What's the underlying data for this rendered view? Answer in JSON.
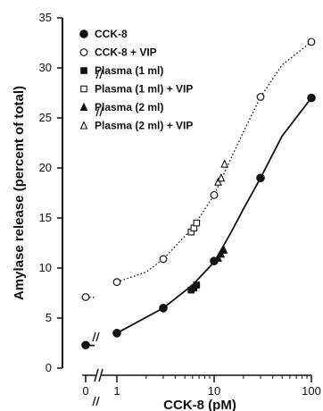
{
  "chart_data": {
    "type": "scatter",
    "title": "",
    "xlabel": "CCK-8 (pM)",
    "ylabel": "Amylase release (percent of total)",
    "xscale": "log",
    "xaxis_break": "between 0 and 1",
    "xticks": [
      "0",
      "1",
      "10",
      "100"
    ],
    "yticks": [
      "0",
      "5",
      "10",
      "15",
      "20",
      "25",
      "30",
      "35"
    ],
    "ylim": [
      0,
      35
    ],
    "grid": false,
    "legend_position": "top-left",
    "series": [
      {
        "name": "CCK-8",
        "marker": "filled-circle",
        "points": [
          [
            0,
            2.3
          ],
          [
            1,
            3.5
          ],
          [
            3,
            6.0
          ],
          [
            10,
            10.7
          ],
          [
            30,
            19.0
          ],
          [
            100,
            27.0
          ]
        ]
      },
      {
        "name": "CCK-8 + VIP",
        "marker": "open-circle",
        "points": [
          [
            0,
            7.1
          ],
          [
            1,
            8.6
          ],
          [
            3,
            10.9
          ],
          [
            10,
            17.3
          ],
          [
            30,
            27.1
          ],
          [
            100,
            32.6
          ]
        ]
      },
      {
        "name": "Plasma (1 ml)",
        "marker": "filled-square",
        "points": [
          [
            5.8,
            7.8
          ],
          [
            6.2,
            8.0
          ],
          [
            6.6,
            8.3
          ]
        ]
      },
      {
        "name": "Plasma (1 ml) + VIP",
        "marker": "open-square",
        "points": [
          [
            5.8,
            13.6
          ],
          [
            6.2,
            14.0
          ],
          [
            6.6,
            14.5
          ]
        ]
      },
      {
        "name": "Plasma (2 ml)",
        "marker": "filled-triangle",
        "points": [
          [
            11.0,
            11.0
          ],
          [
            11.8,
            11.4
          ],
          [
            12.6,
            11.8
          ]
        ]
      },
      {
        "name": "Plasma (2 ml) + VIP",
        "marker": "open-triangle",
        "points": [
          [
            11.0,
            18.6
          ],
          [
            11.8,
            19.0
          ],
          [
            12.8,
            20.4
          ]
        ]
      }
    ],
    "curves": [
      {
        "series": "CCK-8",
        "style": "solid",
        "points": [
          [
            0,
            2.3
          ],
          [
            1,
            3.5
          ],
          [
            3,
            6.0
          ],
          [
            6,
            8.3
          ],
          [
            10,
            10.6
          ],
          [
            15,
            13.6
          ],
          [
            20,
            15.9
          ],
          [
            30,
            19.0
          ],
          [
            50,
            23.2
          ],
          [
            100,
            27.0
          ]
        ]
      },
      {
        "series": "CCK-8 + VIP",
        "style": "dotted",
        "points": [
          [
            0,
            7.1
          ],
          [
            1,
            8.6
          ],
          [
            2,
            9.6
          ],
          [
            3,
            10.9
          ],
          [
            6,
            14.0
          ],
          [
            10,
            17.3
          ],
          [
            15,
            21.0
          ],
          [
            20,
            23.6
          ],
          [
            30,
            27.1
          ],
          [
            50,
            30.3
          ],
          [
            100,
            32.6
          ]
        ]
      }
    ]
  }
}
